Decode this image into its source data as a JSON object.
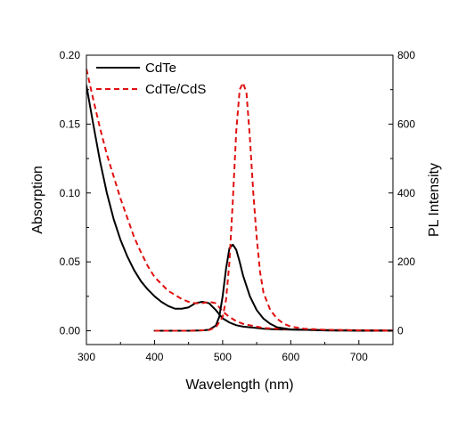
{
  "chart_data": {
    "type": "line",
    "xlabel": "Wavelength (nm)",
    "ylabel_left": "Absorption",
    "ylabel_right": "PL Intensity",
    "xlim": [
      300,
      750
    ],
    "ylim_left": [
      -0.01,
      0.2
    ],
    "ylim_right": [
      -40,
      800
    ],
    "x_ticks": [
      300,
      400,
      500,
      600,
      700
    ],
    "x_tick_labels": [
      "300",
      "400",
      "500",
      "600",
      "700"
    ],
    "y_left_ticks": [
      0.0,
      0.05,
      0.1,
      0.15,
      0.2
    ],
    "y_left_tick_labels": [
      "0.00",
      "0.05",
      "0.10",
      "0.15",
      "0.20"
    ],
    "y_right_ticks": [
      0,
      200,
      400,
      600,
      800
    ],
    "y_right_tick_labels": [
      "0",
      "200",
      "400",
      "600",
      "800"
    ],
    "legend_position": "top-left",
    "grid": false,
    "series": [
      {
        "name": "CdTe",
        "kind": "absorption",
        "axis": "left",
        "color": "#000000",
        "dash": "solid",
        "x": [
          300,
          310,
          320,
          330,
          340,
          350,
          360,
          370,
          380,
          390,
          400,
          410,
          420,
          430,
          440,
          450,
          460,
          470,
          480,
          490,
          500,
          510,
          520,
          530,
          540,
          550,
          560,
          580,
          600,
          650,
          700,
          750
        ],
        "y": [
          0.178,
          0.15,
          0.123,
          0.1,
          0.081,
          0.066,
          0.054,
          0.044,
          0.036,
          0.03,
          0.025,
          0.021,
          0.018,
          0.016,
          0.016,
          0.017,
          0.02,
          0.021,
          0.02,
          0.015,
          0.009,
          0.006,
          0.004,
          0.003,
          0.0025,
          0.002,
          0.0015,
          0.001,
          0.0008,
          0.0005,
          0.0003,
          0.0002
        ]
      },
      {
        "name": "CdTe/CdS",
        "kind": "absorption",
        "axis": "left",
        "color": "#e01010",
        "dash": "dashed",
        "x": [
          300,
          310,
          320,
          330,
          340,
          350,
          360,
          370,
          380,
          390,
          400,
          410,
          420,
          430,
          440,
          450,
          460,
          470,
          480,
          490,
          500,
          510,
          520,
          530,
          540,
          550,
          560,
          580,
          600,
          650,
          700,
          750
        ],
        "y": [
          0.19,
          0.168,
          0.147,
          0.128,
          0.112,
          0.096,
          0.082,
          0.068,
          0.057,
          0.047,
          0.039,
          0.034,
          0.029,
          0.026,
          0.023,
          0.021,
          0.02,
          0.02,
          0.021,
          0.02,
          0.014,
          0.01,
          0.007,
          0.005,
          0.004,
          0.003,
          0.002,
          0.0015,
          0.001,
          0.0006,
          0.0004,
          0.0003
        ]
      },
      {
        "name": "CdTe PL",
        "kind": "photoluminescence",
        "axis": "right",
        "color": "#000000",
        "dash": "solid",
        "x": [
          400,
          450,
          470,
          480,
          490,
          495,
          500,
          505,
          510,
          515,
          520,
          525,
          530,
          540,
          550,
          560,
          570,
          580,
          600,
          650,
          700,
          750
        ],
        "y": [
          0,
          0,
          1,
          3,
          15,
          40,
          100,
          180,
          240,
          250,
          235,
          200,
          160,
          100,
          60,
          35,
          20,
          10,
          4,
          1,
          0,
          0
        ]
      },
      {
        "name": "CdTe/CdS PL",
        "kind": "photoluminescence",
        "axis": "right",
        "color": "#e01010",
        "dash": "dashed",
        "x": [
          400,
          450,
          480,
          490,
          500,
          505,
          510,
          515,
          520,
          525,
          530,
          535,
          540,
          545,
          550,
          555,
          560,
          570,
          580,
          590,
          600,
          620,
          650,
          700,
          750
        ],
        "y": [
          0,
          0,
          2,
          10,
          40,
          90,
          200,
          380,
          580,
          700,
          720,
          690,
          560,
          400,
          270,
          170,
          110,
          60,
          35,
          20,
          12,
          6,
          3,
          1,
          0
        ]
      }
    ]
  }
}
